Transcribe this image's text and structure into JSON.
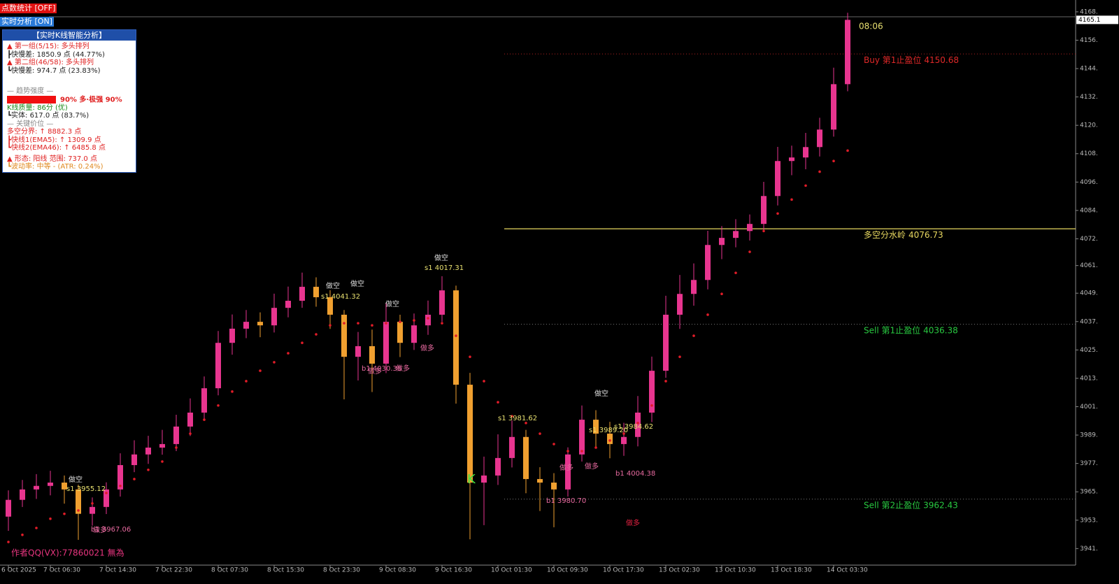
{
  "chart_data": {
    "type": "candlestick",
    "categories": [
      "6 Oct 2025",
      null,
      null,
      "7 Oct 06:30",
      null,
      null,
      null,
      "7 Oct 14:30",
      null,
      null,
      null,
      "7 Oct 22:30",
      null,
      null,
      null,
      "8 Oct 07:30",
      null,
      null,
      null,
      "8 Oct 15:30",
      null,
      null,
      null,
      "8 Oct 23:30",
      null,
      null,
      null,
      "9 Oct 08:30",
      null,
      null,
      null,
      "9 Oct 16:30",
      null,
      null,
      null,
      "10 Oct 01:30",
      null,
      null,
      null,
      "10 Oct 09:30",
      null,
      null,
      null,
      "10 Oct 17:30",
      null,
      null,
      null,
      "13 Oct 02:30",
      null,
      null,
      null,
      "13 Oct 10:30",
      null,
      null,
      null,
      "13 Oct 18:30",
      null,
      null,
      null,
      "14 Oct 03:30",
      null
    ],
    "open": [
      3955.0,
      3962.1,
      3966.5,
      3968.0,
      3969.4,
      3966.5,
      3956.2,
      3959.1,
      3966.5,
      3976.8,
      3981.3,
      3984.2,
      3985.7,
      3993.1,
      3999.0,
      4009.3,
      4028.5,
      4034.5,
      4037.4,
      4035.9,
      4043.3,
      4046.3,
      4052.2,
      4047.8,
      4040.4,
      4022.6,
      4027.1,
      4019.7,
      4037.4,
      4028.5,
      4035.9,
      4040.4,
      4050.7,
      4010.8,
      3969.4,
      3972.4,
      3979.8,
      3988.7,
      3970.9,
      3969.4,
      3966.5,
      3981.3,
      3996.0,
      3990.1,
      3985.7,
      3988.7,
      3999.0,
      4016.7,
      4040.4,
      4049.2,
      4055.1,
      4069.9,
      4072.9,
      4075.8,
      4078.8,
      4090.6,
      4105.4,
      4106.9,
      4111.3,
      4118.7,
      4137.9
    ],
    "high": [
      3966.1,
      3970.5,
      3973.0,
      3974.4,
      3972.4,
      3968.5,
      3963.1,
      3969.5,
      3981.8,
      3987.3,
      3989.2,
      3991.7,
      3998.1,
      4005.0,
      4014.3,
      4033.5,
      4040.5,
      4042.4,
      4041.4,
      4049.3,
      4052.3,
      4058.2,
      4056.2,
      4050.8,
      4042.4,
      4033.1,
      4034.1,
      4045.4,
      4040.4,
      4040.9,
      4046.4,
      4056.7,
      4052.7,
      4015.8,
      3980.4,
      3989.8,
      3995.7,
      3991.7,
      3975.9,
      3973.4,
      3984.3,
      4002.0,
      4000.0,
      3995.1,
      3994.7,
      4006.0,
      4022.7,
      4048.4,
      4057.2,
      4062.1,
      4075.9,
      4077.9,
      4080.8,
      4082.8,
      4096.6,
      4111.4,
      4111.9,
      4117.3,
      4123.7,
      4144.9,
      4168.1
    ],
    "low": [
      3949.0,
      3959.1,
      3962.5,
      3964.0,
      3960.5,
      3945.2,
      3951.2,
      3956.1,
      3963.5,
      3973.8,
      3977.3,
      3981.2,
      3982.7,
      3989.1,
      3996.0,
      4006.3,
      4023.5,
      4030.5,
      4030.9,
      4032.9,
      4039.3,
      4043.3,
      4043.8,
      4034.4,
      4004.6,
      4012.6,
      4007.7,
      4015.7,
      4022.5,
      4025.5,
      4031.9,
      4037.4,
      4002.8,
      3945.4,
      3951.4,
      3968.4,
      3975.8,
      3964.9,
      3957.4,
      3950.5,
      3963.5,
      3978.3,
      3984.1,
      3979.7,
      3980.7,
      3984.7,
      3995.0,
      4013.7,
      4034.4,
      4044.2,
      4051.1,
      4063.9,
      4068.9,
      4071.8,
      4075.8,
      4086.6,
      4099.4,
      4101.9,
      4107.3,
      4115.7,
      4134.9
    ],
    "close": [
      3962.1,
      3966.5,
      3968.0,
      3969.4,
      3966.5,
      3956.2,
      3959.1,
      3966.5,
      3976.8,
      3981.3,
      3984.2,
      3985.7,
      3993.1,
      3999.0,
      4009.3,
      4028.5,
      4034.5,
      4037.4,
      4035.9,
      4043.3,
      4046.3,
      4052.2,
      4047.8,
      4040.4,
      4022.6,
      4027.1,
      4019.7,
      4037.4,
      4028.5,
      4035.9,
      4040.4,
      4050.7,
      4010.8,
      3969.4,
      3972.4,
      3979.8,
      3988.7,
      3970.9,
      3969.4,
      3966.5,
      3981.3,
      3996.0,
      3990.1,
      3985.7,
      3988.7,
      3999.0,
      4016.7,
      4040.4,
      4049.2,
      4055.1,
      4069.9,
      4072.9,
      4075.8,
      4078.8,
      4090.6,
      4105.4,
      4106.9,
      4111.3,
      4118.7,
      4137.9,
      4165.1
    ],
    "up_color": "#e8358f",
    "down_color": "#f0a030",
    "trend": {
      "color": "#e01c28",
      "values": [
        3944.3,
        3947.3,
        3950.2,
        3954.1,
        3956.2,
        3957.6,
        3960.6,
        3965.0,
        3968.0,
        3970.9,
        3974.8,
        3978.3,
        3984.2,
        3990.1,
        3996.0,
        4002.0,
        4007.9,
        4012.3,
        4016.7,
        4020.3,
        4024.1,
        4028.5,
        4032.1,
        4035.9,
        4036.8,
        4036.8,
        4035.9,
        4036.8,
        4037.4,
        4038.0,
        4038.9,
        4036.8,
        4031.5,
        4022.6,
        4012.3,
        4003.4,
        3997.5,
        3994.6,
        3990.1,
        3985.7,
        3982.7,
        3982.7,
        3984.2,
        3987.2,
        3990.1,
        3994.6,
        4002.0,
        4012.3,
        4022.6,
        4031.5,
        4040.4,
        4049.2,
        4058.1,
        4067.0,
        4075.8,
        4083.2,
        4089.1,
        4095.0,
        4100.9,
        4105.4,
        4109.8
      ]
    },
    "levels": [
      {
        "name": "Buy 第1止盈位",
        "value": 4150.68,
        "color": "#e02828"
      },
      {
        "name": "多空分水岭",
        "value": 4076.73,
        "color": "#e8d860"
      },
      {
        "name": "Sell 第1止盈位",
        "value": 4036.38,
        "color": "#28c840"
      },
      {
        "name": "Sell 第2止盈位",
        "value": 3962.43,
        "color": "#28c840"
      }
    ],
    "current_price": 4165.1,
    "timer": "08:06",
    "ylim": [
      3934.5,
      4173.5
    ],
    "yticks": [
      {
        "value": 4168.5,
        "label": "4168."
      },
      {
        "value": 4156.5,
        "label": "4156."
      },
      {
        "value": 4144.5,
        "label": "4144."
      },
      {
        "value": 4132.5,
        "label": "4132."
      },
      {
        "value": 4120.5,
        "label": "4120."
      },
      {
        "value": 4108.5,
        "label": "4108."
      },
      {
        "value": 4096.5,
        "label": "4096."
      },
      {
        "value": 4084.5,
        "label": "4084."
      },
      {
        "value": 4072.5,
        "label": "4072."
      },
      {
        "value": 4061.2,
        "label": "4061."
      },
      {
        "value": 4049.5,
        "label": "4049."
      },
      {
        "value": 4037.5,
        "label": "4037."
      },
      {
        "value": 4025.5,
        "label": "4025."
      },
      {
        "value": 4013.5,
        "label": "4013."
      },
      {
        "value": 4001.5,
        "label": "4001."
      },
      {
        "value": 3989.5,
        "label": "3989."
      },
      {
        "value": 3977.5,
        "label": "3977."
      },
      {
        "value": 3965.5,
        "label": "3965."
      },
      {
        "value": 3953.5,
        "label": "3953."
      },
      {
        "value": 3941.5,
        "label": "3941."
      }
    ],
    "annotations": [
      "做空",
      "s1 3955.12",
      "做多",
      "b1 3967.06",
      "做空",
      "s1 4041.32",
      "做空",
      "做空",
      "b1 4030.36",
      "做多",
      "做多",
      "做多",
      "做空",
      "s1 4017.31",
      "s1 3981.62",
      "b1 3980.70",
      "做多",
      "做多",
      "做空",
      "s1 3989.20",
      "s1 3984.62",
      "b1 4004.38",
      "做多",
      "K",
      "作者QQ(VX):77860021 無為"
    ]
  },
  "buttons": {
    "stats": "点数统计 [OFF]",
    "analysis": "实时分析 [ON]"
  },
  "panel": {
    "title": "【实时K线智能分析】",
    "lines": [
      "▲ 第一组(5/15): 多头排列",
      "┣快慢差: 1850.9 点 (44.77%)",
      "▲ 第二组(46/58): 多头排列",
      "┗快慢差: 974.7 点 (23.83%)",
      "— 趋势强度 —",
      "90% 多·极强 90%",
      "K线质量: 86分 (优)",
      "┗实体: 617.0 点 (83.7%)",
      "— 关键价位 —",
      "多空分界: ↑ 8882.3 点",
      "┣快线1(EMA5): ↑ 1309.9 点",
      "┗快线2(EMA46): ↑ 6485.8 点",
      "▲ 形态: 阳线 范围: 737.0 点",
      "┗波动率: 中等 - (ATR: 0.24%)"
    ]
  }
}
